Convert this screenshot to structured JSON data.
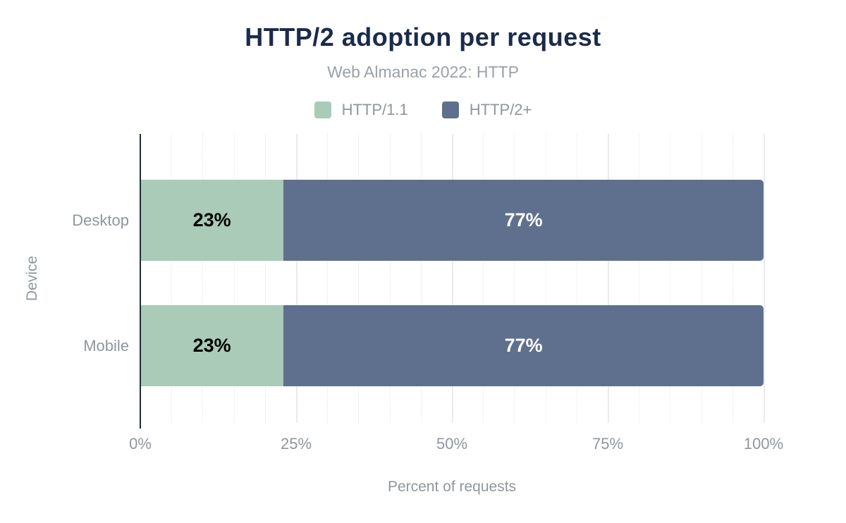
{
  "chart": {
    "title": "HTTP/2 adoption per request",
    "subtitle": "Web Almanac 2022: HTTP"
  },
  "chart_data": {
    "type": "bar",
    "orientation": "horizontal",
    "stacked": true,
    "title": "HTTP/2 adoption per request",
    "subtitle": "Web Almanac 2022: HTTP",
    "categories": [
      "Desktop",
      "Mobile"
    ],
    "series": [
      {
        "name": "HTTP/1.1",
        "color": "#a9cbb7",
        "label_color": "#000000",
        "values": [
          23,
          23
        ],
        "labels": [
          "23%",
          "23%"
        ]
      },
      {
        "name": "HTTP/2+",
        "color": "#5f708e",
        "label_color": "#ffffff",
        "values": [
          77,
          77
        ],
        "labels": [
          "77%",
          "77%"
        ]
      }
    ],
    "xlabel": "Percent of requests",
    "ylabel": "Device",
    "xlim": [
      0,
      100
    ],
    "xticks": [
      0,
      25,
      50,
      75,
      100
    ],
    "xtick_labels": [
      "0%",
      "25%",
      "50%",
      "75%",
      "100%"
    ],
    "minor_tick_step": 5,
    "grid": "vertical major solid at 25% steps, minor dotted at 5% steps",
    "legend_position": "top-center"
  },
  "colors": {
    "navy": "#1b2b4a",
    "text_gray": "#8f969e",
    "subtitle_gray": "#9aa1a9",
    "grid_major": "#ebebee",
    "grid_minor": "#e7e7ee",
    "bg": "#ffffff"
  }
}
